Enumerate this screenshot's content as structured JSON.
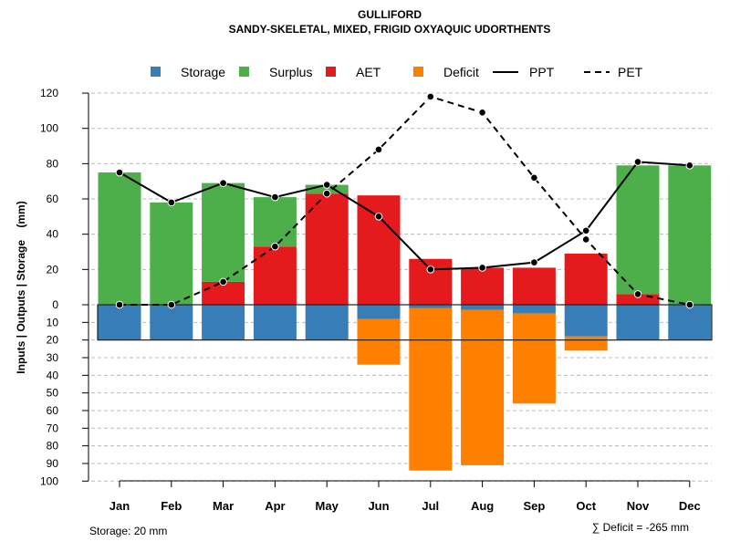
{
  "chart_data": {
    "type": "bar",
    "title": "GULLIFORD",
    "subtitle": "SANDY-SKELETAL, MIXED, FRIGID OXYAQUIC UDORTHENTS",
    "ylabel": "Inputs | Outputs | Storage    (mm)",
    "categories": [
      "Jan",
      "Feb",
      "Mar",
      "Apr",
      "May",
      "Jun",
      "Jul",
      "Aug",
      "Sep",
      "Oct",
      "Nov",
      "Dec"
    ],
    "upper_ticks": [
      "0",
      "20",
      "40",
      "60",
      "80",
      "100",
      "120"
    ],
    "lower_ticks": [
      "10",
      "20",
      "30",
      "40",
      "50",
      "60",
      "70",
      "80",
      "90",
      "100"
    ],
    "ylim_upper": [
      0,
      120
    ],
    "ylim_lower": [
      0,
      100
    ],
    "grid": true,
    "legend_position": "top",
    "series": [
      {
        "name": "Storage",
        "kind": "bar-below",
        "color": "#377EB8",
        "values": [
          20,
          20,
          20,
          20,
          20,
          8,
          2,
          3,
          5,
          18,
          20,
          20
        ]
      },
      {
        "name": "Surplus",
        "kind": "bar-above",
        "color": "#4DAF4A",
        "values": [
          75,
          58,
          56,
          28,
          5,
          0,
          0,
          0,
          0,
          0,
          73,
          79
        ]
      },
      {
        "name": "AET",
        "kind": "bar-above",
        "color": "#E41A1C",
        "values": [
          0,
          0,
          13,
          33,
          63,
          62,
          26,
          21,
          21,
          29,
          6,
          0
        ]
      },
      {
        "name": "Deficit",
        "kind": "bar-below",
        "color": "#FF7F00",
        "values": [
          0,
          0,
          0,
          0,
          0,
          26,
          92,
          88,
          51,
          8,
          0,
          0
        ]
      },
      {
        "name": "PPT",
        "kind": "line-solid",
        "color": "#000000",
        "values": [
          75,
          58,
          69,
          61,
          68,
          50,
          20,
          21,
          24,
          42,
          81,
          79
        ]
      },
      {
        "name": "PET",
        "kind": "line-dashed",
        "color": "#000000",
        "values": [
          0,
          0,
          13,
          33,
          63,
          88,
          118,
          109,
          72,
          37,
          6,
          0
        ]
      }
    ],
    "storage_capacity": 20,
    "annotations": {
      "storage_note": "Storage: 20 mm",
      "deficit_note": "∑ Deficit = -265 mm"
    }
  }
}
